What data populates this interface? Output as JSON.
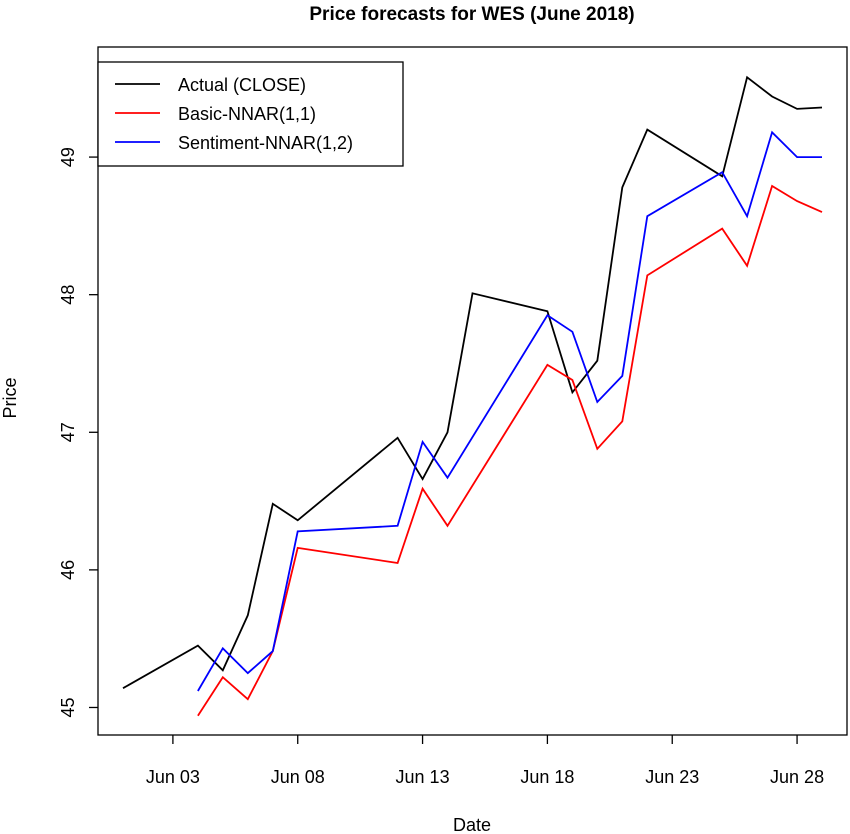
{
  "chart_data": {
    "type": "line",
    "title": "Price forecasts for WES (June 2018)",
    "xlabel": "Date",
    "ylabel": "Price",
    "x_ticks": [
      {
        "date": "2018-06-03",
        "label": "Jun 03"
      },
      {
        "date": "2018-06-08",
        "label": "Jun 08"
      },
      {
        "date": "2018-06-13",
        "label": "Jun 13"
      },
      {
        "date": "2018-06-18",
        "label": "Jun 18"
      },
      {
        "date": "2018-06-23",
        "label": "Jun 23"
      },
      {
        "date": "2018-06-28",
        "label": "Jun 28"
      }
    ],
    "y_ticks": [
      45,
      46,
      47,
      48,
      49
    ],
    "xlim": [
      "2018-05-31",
      "2018-06-30"
    ],
    "ylim": [
      44.8,
      49.8
    ],
    "grid": false,
    "legend_position": "top-left",
    "series": [
      {
        "name": "Actual (CLOSE)",
        "color": "#000000",
        "points": [
          {
            "x": "2018-06-01",
            "y": 45.14
          },
          {
            "x": "2018-06-04",
            "y": 45.45
          },
          {
            "x": "2018-06-05",
            "y": 45.27
          },
          {
            "x": "2018-06-06",
            "y": 45.67
          },
          {
            "x": "2018-06-07",
            "y": 46.48
          },
          {
            "x": "2018-06-08",
            "y": 46.36
          },
          {
            "x": "2018-06-12",
            "y": 46.96
          },
          {
            "x": "2018-06-13",
            "y": 46.66
          },
          {
            "x": "2018-06-14",
            "y": 47.0
          },
          {
            "x": "2018-06-15",
            "y": 48.01
          },
          {
            "x": "2018-06-18",
            "y": 47.88
          },
          {
            "x": "2018-06-19",
            "y": 47.29
          },
          {
            "x": "2018-06-20",
            "y": 47.52
          },
          {
            "x": "2018-06-21",
            "y": 48.78
          },
          {
            "x": "2018-06-22",
            "y": 49.2
          },
          {
            "x": "2018-06-25",
            "y": 48.86
          },
          {
            "x": "2018-06-26",
            "y": 49.58
          },
          {
            "x": "2018-06-27",
            "y": 49.44
          },
          {
            "x": "2018-06-28",
            "y": 49.35
          },
          {
            "x": "2018-06-29",
            "y": 49.36
          }
        ]
      },
      {
        "name": "Basic-NNAR(1,1)",
        "color": "#ff0000",
        "points": [
          {
            "x": "2018-06-04",
            "y": 44.94
          },
          {
            "x": "2018-06-05",
            "y": 45.22
          },
          {
            "x": "2018-06-06",
            "y": 45.06
          },
          {
            "x": "2018-06-07",
            "y": 45.41
          },
          {
            "x": "2018-06-08",
            "y": 46.16
          },
          {
            "x": "2018-06-12",
            "y": 46.05
          },
          {
            "x": "2018-06-13",
            "y": 46.59
          },
          {
            "x": "2018-06-14",
            "y": 46.32
          },
          {
            "x": "2018-06-18",
            "y": 47.49
          },
          {
            "x": "2018-06-19",
            "y": 47.38
          },
          {
            "x": "2018-06-20",
            "y": 46.88
          },
          {
            "x": "2018-06-21",
            "y": 47.08
          },
          {
            "x": "2018-06-22",
            "y": 48.14
          },
          {
            "x": "2018-06-25",
            "y": 48.48
          },
          {
            "x": "2018-06-26",
            "y": 48.21
          },
          {
            "x": "2018-06-27",
            "y": 48.79
          },
          {
            "x": "2018-06-28",
            "y": 48.68
          },
          {
            "x": "2018-06-29",
            "y": 48.6
          }
        ]
      },
      {
        "name": "Sentiment-NNAR(1,2)",
        "color": "#0000ff",
        "points": [
          {
            "x": "2018-06-04",
            "y": 45.12
          },
          {
            "x": "2018-06-05",
            "y": 45.43
          },
          {
            "x": "2018-06-06",
            "y": 45.25
          },
          {
            "x": "2018-06-07",
            "y": 45.41
          },
          {
            "x": "2018-06-08",
            "y": 46.28
          },
          {
            "x": "2018-06-12",
            "y": 46.32
          },
          {
            "x": "2018-06-13",
            "y": 46.93
          },
          {
            "x": "2018-06-14",
            "y": 46.67
          },
          {
            "x": "2018-06-18",
            "y": 47.85
          },
          {
            "x": "2018-06-19",
            "y": 47.73
          },
          {
            "x": "2018-06-20",
            "y": 47.22
          },
          {
            "x": "2018-06-21",
            "y": 47.41
          },
          {
            "x": "2018-06-22",
            "y": 48.57
          },
          {
            "x": "2018-06-25",
            "y": 48.89
          },
          {
            "x": "2018-06-26",
            "y": 48.57
          },
          {
            "x": "2018-06-27",
            "y": 49.18
          },
          {
            "x": "2018-06-28",
            "y": 49.0
          },
          {
            "x": "2018-06-29",
            "y": 49.0
          }
        ]
      }
    ]
  }
}
